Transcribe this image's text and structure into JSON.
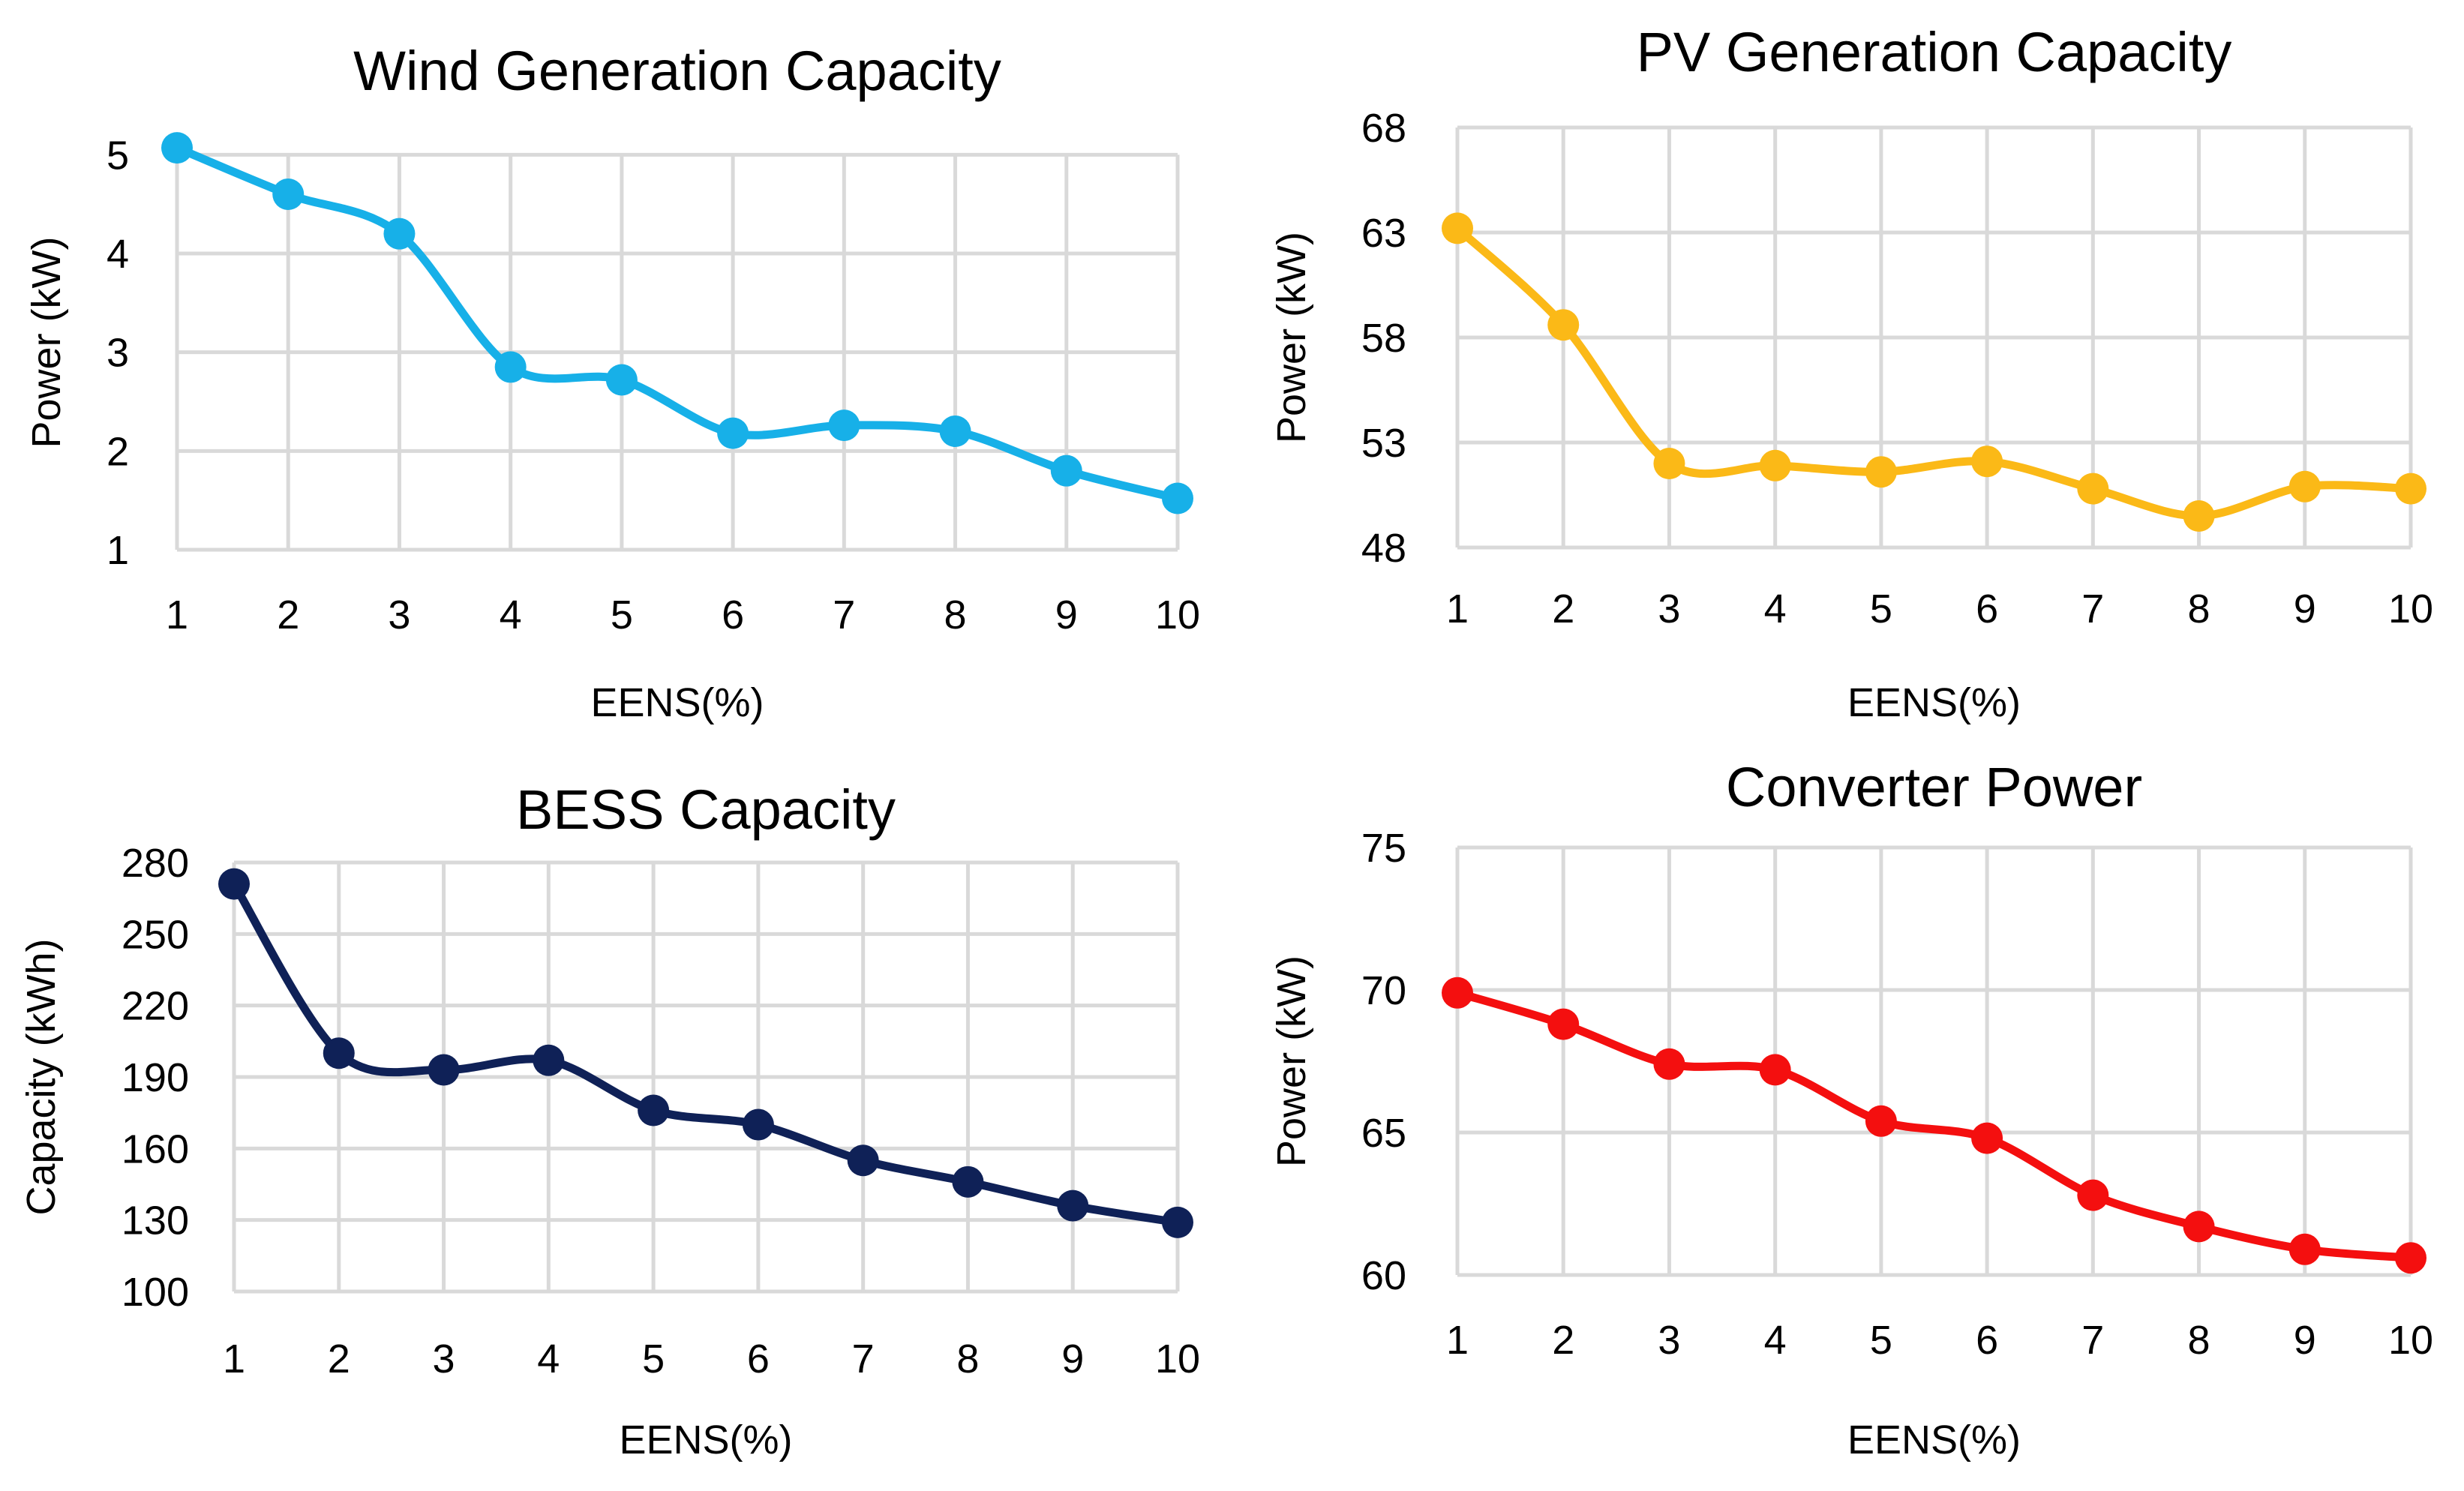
{
  "chart_data": [
    {
      "id": "wind",
      "type": "line",
      "title": "Wind Generation Capacity",
      "xlabel": "EENS(%)",
      "ylabel": "Power (kW)",
      "x": [
        1,
        2,
        3,
        4,
        5,
        6,
        7,
        8,
        9,
        10
      ],
      "y_ticks": [
        1,
        2,
        3,
        4,
        5
      ],
      "ylim": [
        1,
        5.2
      ],
      "grid": true,
      "series": [
        {
          "name": "Wind Generation Capacity",
          "color": "#17b0e8",
          "values": [
            5.07,
            4.6,
            4.2,
            2.85,
            2.72,
            2.18,
            2.26,
            2.2,
            1.8,
            1.52
          ]
        }
      ]
    },
    {
      "id": "pv",
      "type": "line",
      "title": "PV Generation Capacity",
      "xlabel": "EENS(%)",
      "ylabel": "Power (kW)",
      "x": [
        1,
        2,
        3,
        4,
        5,
        6,
        7,
        8,
        9,
        10
      ],
      "y_ticks": [
        48,
        53,
        58,
        63,
        68
      ],
      "ylim": [
        48,
        68
      ],
      "grid": true,
      "series": [
        {
          "name": "PV Generation Capacity",
          "color": "#fbb917",
          "values": [
            63.2,
            58.6,
            52.0,
            51.9,
            51.6,
            52.1,
            50.8,
            49.5,
            50.9,
            50.8
          ]
        }
      ]
    },
    {
      "id": "bess",
      "type": "line",
      "title": "BESS Capacity",
      "xlabel": "EENS(%)",
      "ylabel": "Capacity (kWh)",
      "x": [
        1,
        2,
        3,
        4,
        5,
        6,
        7,
        8,
        9,
        10
      ],
      "y_ticks": [
        100,
        130,
        160,
        190,
        220,
        250,
        280
      ],
      "ylim": [
        100,
        280
      ],
      "grid": true,
      "series": [
        {
          "name": "BESS Capacity",
          "color": "#0f2157",
          "values": [
            271,
            200,
            193,
            197,
            176,
            170,
            155,
            146,
            136,
            129
          ]
        }
      ]
    },
    {
      "id": "converter",
      "type": "line",
      "title": "Converter Power",
      "xlabel": "EENS(%)",
      "ylabel": "Power (kW)",
      "x": [
        1,
        2,
        3,
        4,
        5,
        6,
        7,
        8,
        9,
        10
      ],
      "y_ticks": [
        60,
        65,
        70,
        75
      ],
      "ylim": [
        60,
        75
      ],
      "grid": true,
      "series": [
        {
          "name": "Converter Power",
          "color": "#f40f0f",
          "values": [
            69.9,
            68.8,
            67.4,
            67.2,
            65.4,
            64.8,
            62.8,
            61.7,
            60.9,
            60.6
          ]
        }
      ]
    }
  ]
}
